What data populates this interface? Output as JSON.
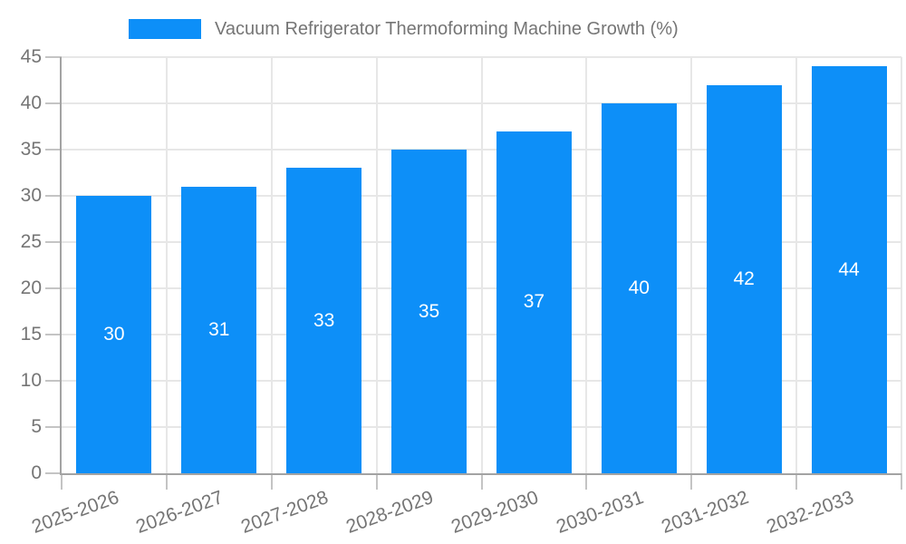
{
  "chart_data": {
    "type": "bar",
    "title": "Vacuum Refrigerator Thermoforming Machine Growth (%)",
    "categories": [
      "2025-2026",
      "2026-2027",
      "2027-2028",
      "2028-2029",
      "2029-2030",
      "2030-2031",
      "2031-2032",
      "2032-2033"
    ],
    "values": [
      30,
      31,
      33,
      35,
      37,
      40,
      42,
      44
    ],
    "xlabel": "",
    "ylabel": "",
    "ylim": [
      0,
      45
    ],
    "ytick_step": 5,
    "yticks": [
      0,
      5,
      10,
      15,
      20,
      25,
      30,
      35,
      40,
      45
    ],
    "grid": true,
    "legend_position": "top",
    "x_label_rotation_deg": -20,
    "colors": {
      "bar": "#0d8ff8",
      "bar_value_label": "#ffffff",
      "axis_text": "#757575",
      "grid_line": "#e7e7e7",
      "axis_line": "#a3a3a3",
      "tick_mark": "#c4c4c4",
      "background": "#ffffff"
    }
  }
}
